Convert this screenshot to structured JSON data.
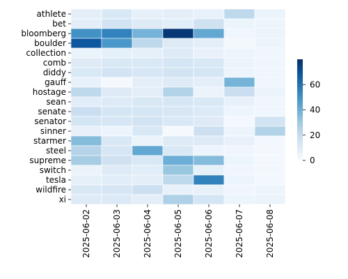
{
  "chart_data": {
    "type": "heatmap",
    "title": "",
    "xlabel": "",
    "ylabel": "",
    "x": [
      "2025-06-02",
      "2025-06-03",
      "2025-06-04",
      "2025-06-05",
      "2025-06-06",
      "2025-06-07",
      "2025-06-08"
    ],
    "y": [
      "athlete",
      "bet",
      "bloomberg",
      "boulder",
      "collection",
      "comb",
      "diddy",
      "gauff",
      "hostage",
      "sean",
      "senate",
      "senator",
      "sinner",
      "starmer",
      "steel",
      "supreme",
      "switch",
      "tesla",
      "wildfire",
      "xi"
    ],
    "values": [
      [
        8,
        12,
        7,
        8,
        6,
        22,
        5
      ],
      [
        8,
        15,
        10,
        9,
        16,
        5,
        4
      ],
      [
        50,
        55,
        38,
        78,
        42,
        3,
        5
      ],
      [
        68,
        48,
        22,
        10,
        8,
        2,
        4
      ],
      [
        5,
        7,
        7,
        10,
        6,
        4,
        3
      ],
      [
        10,
        12,
        12,
        14,
        12,
        5,
        3
      ],
      [
        12,
        15,
        13,
        15,
        14,
        4,
        3
      ],
      [
        6,
        1,
        8,
        10,
        8,
        38,
        3
      ],
      [
        22,
        10,
        8,
        25,
        5,
        18,
        5
      ],
      [
        9,
        10,
        12,
        13,
        12,
        6,
        3
      ],
      [
        18,
        14,
        14,
        13,
        11,
        4,
        3
      ],
      [
        14,
        13,
        15,
        12,
        10,
        2,
        15
      ],
      [
        6,
        4,
        12,
        1,
        17,
        4,
        25
      ],
      [
        35,
        12,
        5,
        10,
        10,
        6,
        2
      ],
      [
        24,
        13,
        42,
        12,
        4,
        3,
        2
      ],
      [
        28,
        16,
        12,
        40,
        35,
        4,
        2
      ],
      [
        5,
        10,
        9,
        31,
        7,
        3,
        2
      ],
      [
        7,
        9,
        8,
        22,
        55,
        4,
        2
      ],
      [
        12,
        13,
        17,
        6,
        6,
        3,
        4
      ],
      [
        10,
        11,
        8,
        26,
        14,
        4,
        5
      ]
    ],
    "colorbar": {
      "min": 0,
      "max": 80,
      "ticks": [
        0,
        20,
        40,
        60
      ]
    },
    "colormap": "Blues",
    "grid": false,
    "legend": "colorbar-right"
  }
}
